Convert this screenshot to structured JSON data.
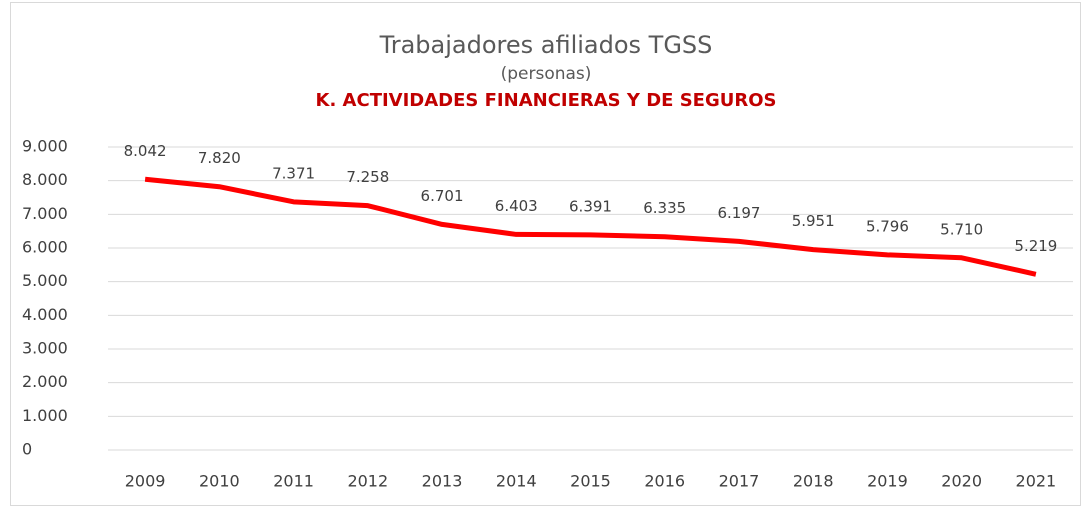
{
  "chart_data": {
    "type": "line",
    "title": "Trabajadores afiliados TGSS",
    "subtitle": "(personas)",
    "subtitle2": "K. ACTIVIDADES FINANCIERAS Y DE SEGUROS",
    "categories": [
      "2009",
      "2010",
      "2011",
      "2012",
      "2013",
      "2014",
      "2015",
      "2016",
      "2017",
      "2018",
      "2019",
      "2020",
      "2021"
    ],
    "series": [
      {
        "name": "K. ACTIVIDADES FINANCIERAS Y DE SEGUROS",
        "color": "#ff0000",
        "values": [
          8042,
          7820,
          7371,
          7258,
          6701,
          6403,
          6391,
          6335,
          6197,
          5951,
          5796,
          5710,
          5219
        ],
        "value_labels": [
          "8.042",
          "7.820",
          "7.371",
          "7.258",
          "6.701",
          "6.403",
          "6.391",
          "6.335",
          "6.197",
          "5.951",
          "5.796",
          "5.710",
          "5.219"
        ]
      }
    ],
    "ylim": [
      0,
      9000
    ],
    "yticks": [
      0,
      {
        "value": 1000,
        "label": "1.000"
      },
      {
        "value": 2000,
        "label": "2.000"
      },
      {
        "value": 3000,
        "label": "3.000"
      },
      {
        "value": 4000,
        "label": "4.000"
      },
      {
        "value": 5000,
        "label": "5.000"
      },
      {
        "value": 6000,
        "label": "6.000"
      },
      {
        "value": 7000,
        "label": "7.000"
      },
      {
        "value": 8000,
        "label": "8.000"
      },
      {
        "value": 9000,
        "label": "9.000"
      }
    ],
    "grid": true
  }
}
